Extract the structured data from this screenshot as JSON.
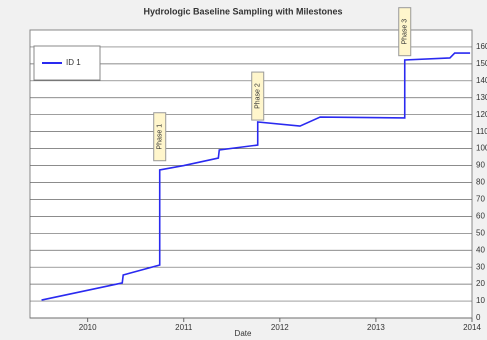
{
  "chart_data": {
    "type": "line",
    "title": "Hydrologic Baseline Sampling with Milestones",
    "x_label": "Date",
    "xlim": [
      2009.4,
      2014
    ],
    "xticks": [
      2010,
      2011,
      2012,
      2013,
      2014
    ],
    "ylim": [
      0,
      170
    ],
    "yticks": [
      0,
      10,
      20,
      30,
      40,
      50,
      60,
      70,
      80,
      90,
      100,
      110,
      120,
      130,
      140,
      150,
      160
    ],
    "grid": true,
    "legend": "upper left",
    "series": [
      {
        "name": "ID 1",
        "color": "#2a2af0",
        "x": [
          2009.52,
          2010.36,
          2010.37,
          2010.75,
          2010.75,
          2011.0,
          2011.36,
          2011.37,
          2011.77,
          2011.77,
          2012.21,
          2012.42,
          2013.3,
          2013.3,
          2013.77,
          2013.82,
          2013.98
        ],
        "values": [
          10.6,
          20.7,
          25.4,
          31.3,
          87.4,
          90,
          94.4,
          99.2,
          102.1,
          115.7,
          113.3,
          118.6,
          118.1,
          152.3,
          153.5,
          156.4,
          156.4
        ]
      }
    ],
    "annotations": [
      {
        "text": "Phase 1",
        "x": 2010.75,
        "y": 107
      },
      {
        "text": "Phase 2",
        "x": 2011.77,
        "y": 131
      },
      {
        "text": "Phase 3",
        "x": 2013.3,
        "y": 169
      }
    ]
  }
}
